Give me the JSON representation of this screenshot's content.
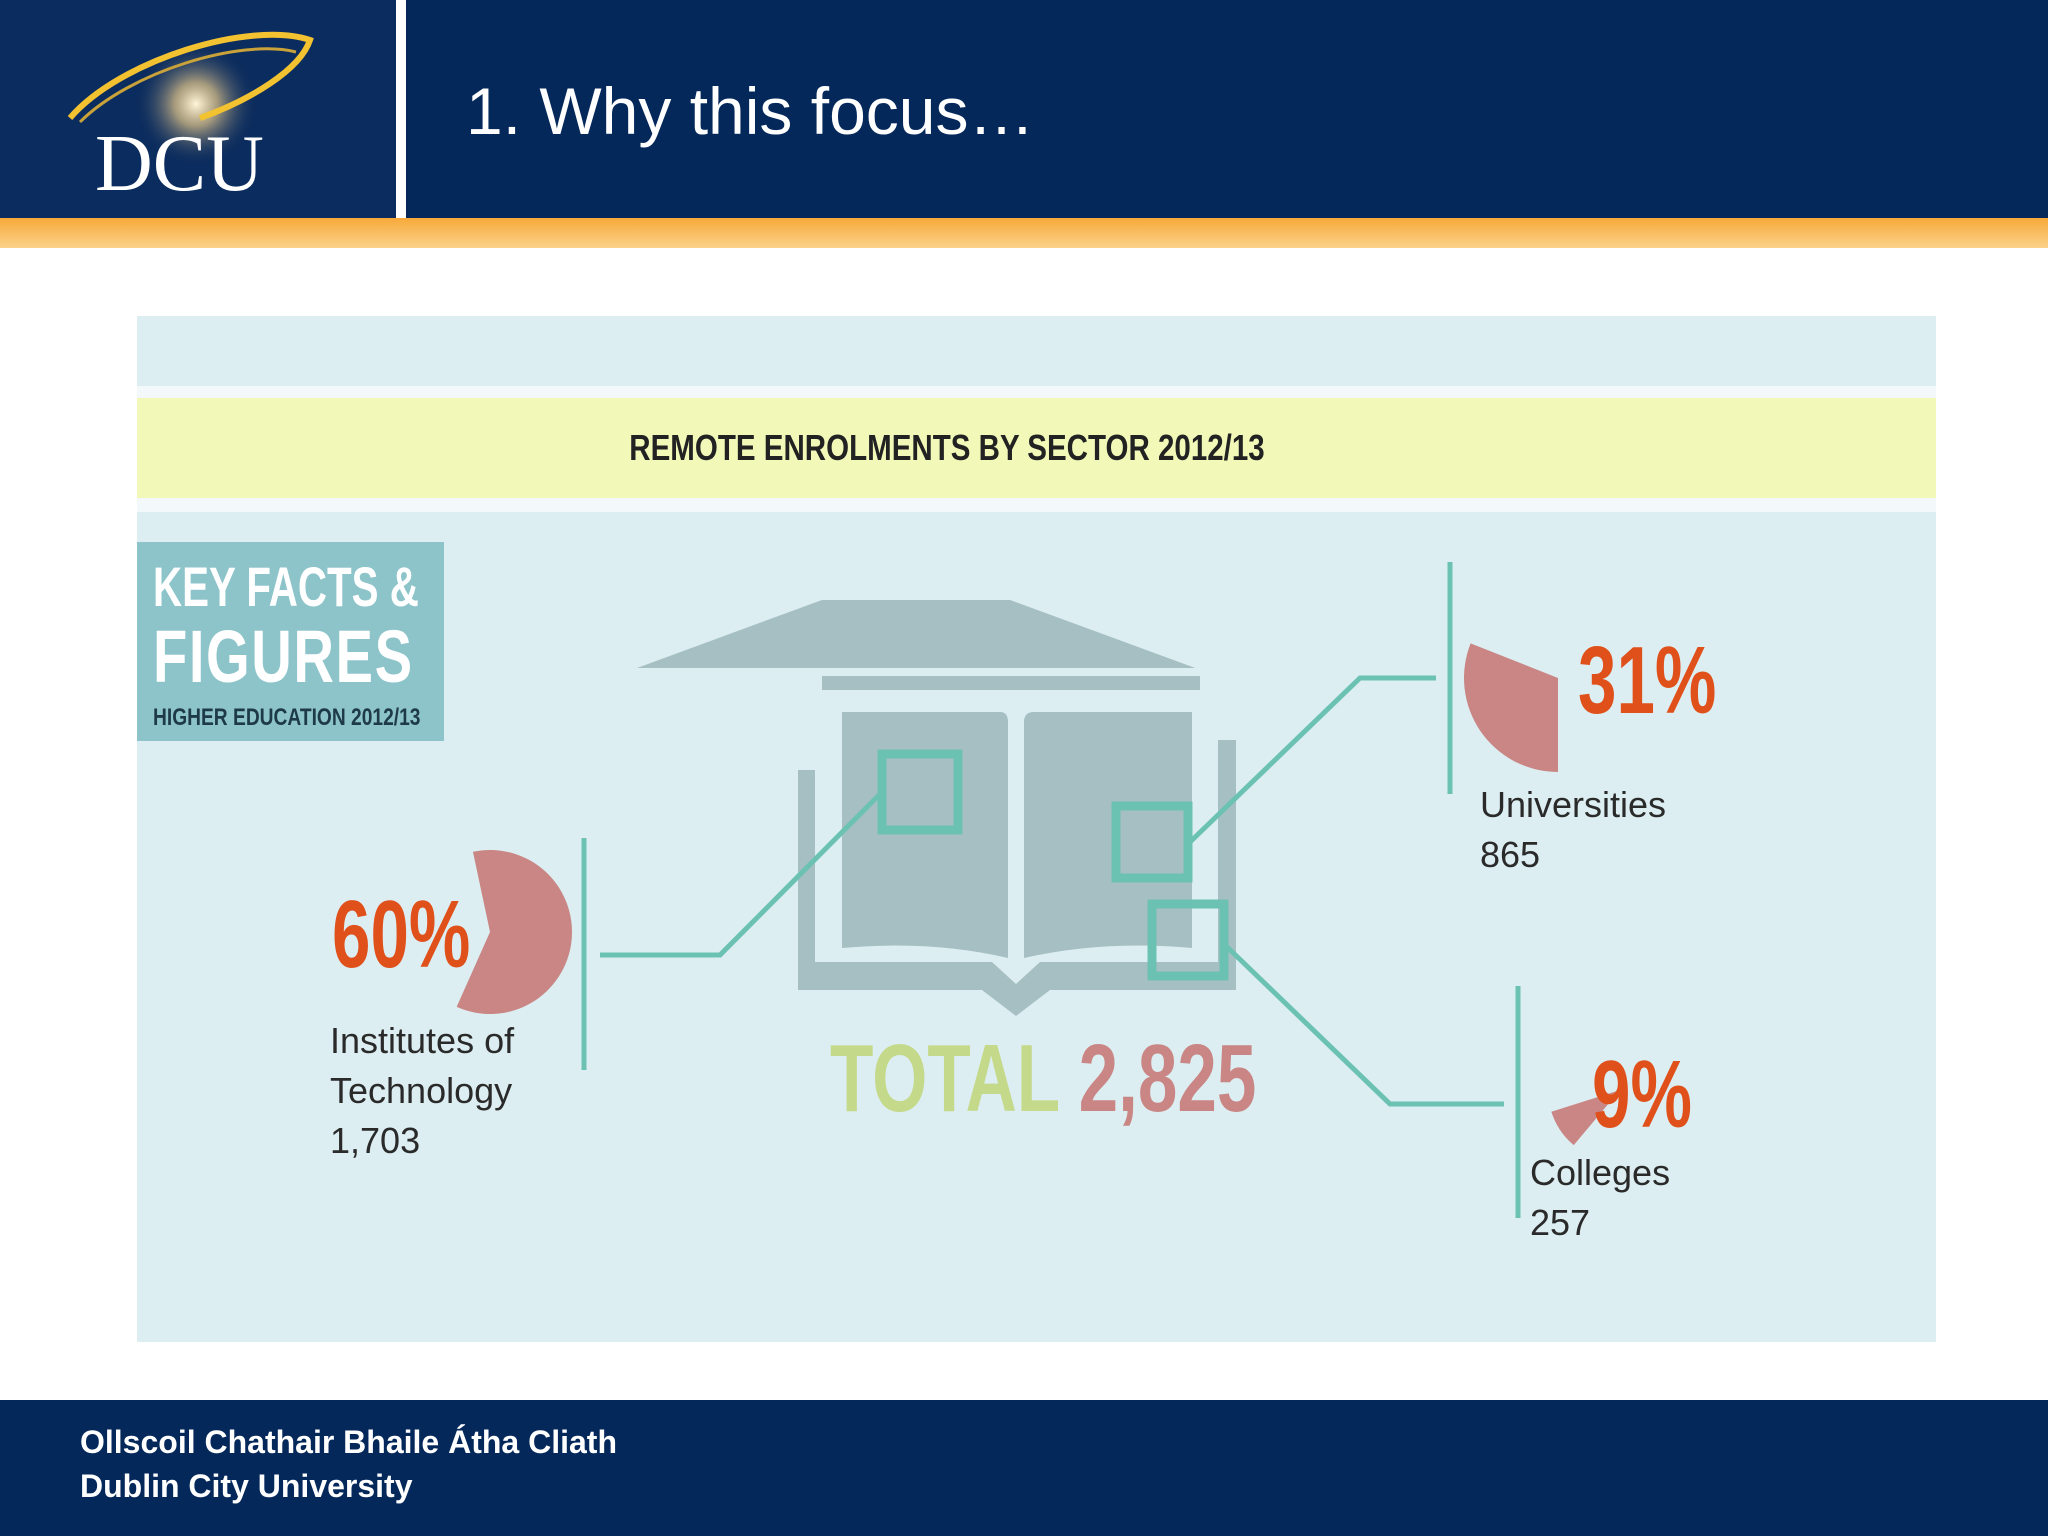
{
  "header": {
    "title": "1. Why this focus…",
    "logo_text": "DCU"
  },
  "infographic": {
    "banner_title": "REMOTE ENROLMENTS BY SECTOR 2012/13",
    "key_facts": {
      "line1": "KEY FACTS &",
      "line2": "FIGURES",
      "line3": "HIGHER EDUCATION 2012/13"
    },
    "total_label": "TOTAL",
    "total_value": "2,825",
    "sectors": [
      {
        "percent": "60%",
        "label_line1": "Institutes of",
        "label_line2": "Technology",
        "count": "1,703",
        "share": 0.6
      },
      {
        "percent": "31%",
        "label_line1": "Universities",
        "label_line2": "",
        "count": "865",
        "share": 0.31
      },
      {
        "percent": "9%",
        "label_line1": "Colleges",
        "label_line2": "",
        "count": "257",
        "share": 0.09
      }
    ],
    "colors": {
      "pie": "#c98684",
      "percent": "#e0501a",
      "connector": "#6cc2b2",
      "book": "#a6bfc3",
      "total_word": "#c5d98a",
      "total_number": "#c98684",
      "banner": "#f2f9b8",
      "background": "#dceef2"
    }
  },
  "footer": {
    "line1": "Ollscoil Chathair Bhaile Átha Cliath",
    "line2": "Dublin City University"
  }
}
